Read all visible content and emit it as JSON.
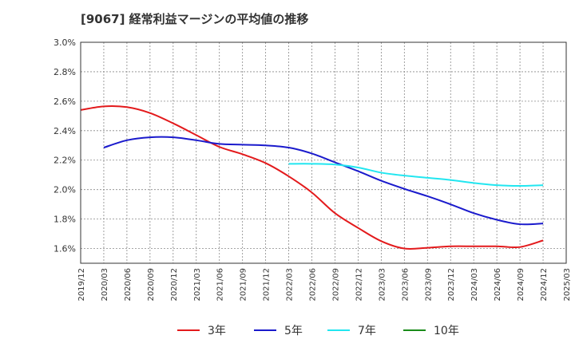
{
  "chart_data": {
    "type": "line",
    "title": "[9067]  経常利益マージンの平均値の推移",
    "xlabel": "",
    "ylabel": "",
    "ylim": [
      1.5,
      3.0
    ],
    "yticks": [
      "3.0%",
      "2.8%",
      "2.6%",
      "2.4%",
      "2.2%",
      "2.0%",
      "1.8%",
      "1.6%"
    ],
    "x": [
      "2019/12",
      "2020/03",
      "2020/06",
      "2020/09",
      "2020/12",
      "2021/03",
      "2021/06",
      "2021/09",
      "2021/12",
      "2022/03",
      "2022/06",
      "2022/09",
      "2022/12",
      "2023/03",
      "2023/06",
      "2023/09",
      "2023/12",
      "2024/03",
      "2024/06",
      "2024/09",
      "2024/12",
      "2025/03"
    ],
    "grid": true,
    "legend_position": "bottom",
    "series": [
      {
        "name": "3年",
        "color": "#e31a1c",
        "values": [
          2.54,
          2.565,
          2.56,
          2.52,
          2.45,
          2.37,
          2.29,
          2.24,
          2.18,
          2.09,
          1.98,
          1.84,
          1.74,
          1.65,
          1.6,
          1.605,
          1.615,
          1.615,
          1.615,
          1.61,
          1.655,
          null
        ]
      },
      {
        "name": "5年",
        "color": "#1a1acc",
        "values": [
          null,
          2.285,
          2.335,
          2.355,
          2.355,
          2.335,
          2.31,
          2.305,
          2.3,
          2.285,
          2.245,
          2.185,
          2.125,
          2.06,
          2.005,
          1.955,
          1.9,
          1.84,
          1.795,
          1.765,
          1.77,
          null
        ]
      },
      {
        "name": "7年",
        "color": "#22e6f0",
        "values": [
          null,
          null,
          null,
          null,
          null,
          null,
          null,
          null,
          null,
          2.175,
          2.175,
          2.17,
          2.15,
          2.115,
          2.095,
          2.08,
          2.065,
          2.045,
          2.03,
          2.025,
          2.03,
          null
        ]
      },
      {
        "name": "10年",
        "color": "#1a8c1a",
        "values": [
          null,
          null,
          null,
          null,
          null,
          null,
          null,
          null,
          null,
          null,
          null,
          null,
          null,
          null,
          null,
          null,
          null,
          null,
          null,
          null,
          null,
          null
        ]
      }
    ]
  }
}
